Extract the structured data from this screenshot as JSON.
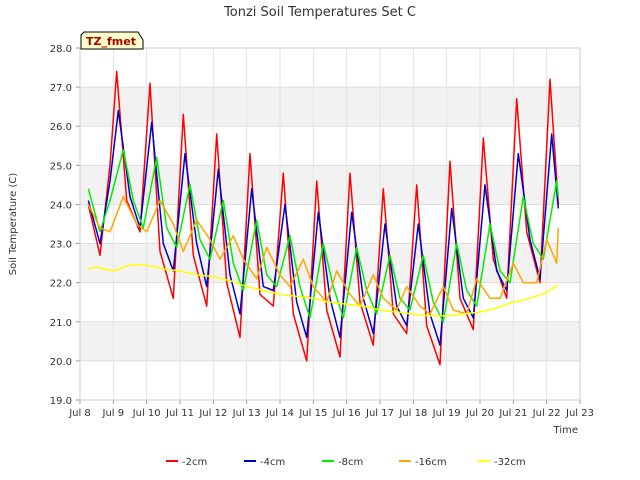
{
  "chart_data": {
    "type": "line",
    "title": "Tonzi Soil Temperatures Set C",
    "xlabel": "Time",
    "ylabel": "Soil Temperature (C)",
    "xlim": [
      8.0,
      23.0
    ],
    "ylim": [
      19.0,
      28.0
    ],
    "x_ticks": [
      8,
      9,
      10,
      11,
      12,
      13,
      14,
      15,
      16,
      17,
      18,
      19,
      20,
      21,
      22,
      23
    ],
    "x_tick_labels": [
      "Jul 8",
      "Jul 9",
      "Jul 10",
      "Jul 11",
      "Jul 12",
      "Jul 13",
      "Jul 14",
      "Jul 15",
      "Jul 16",
      "Jul 17",
      "Jul 18",
      "Jul 19",
      "Jul 20",
      "Jul 21",
      "Jul 22",
      "Jul 23"
    ],
    "y_ticks": [
      19.0,
      20.0,
      21.0,
      22.0,
      23.0,
      24.0,
      25.0,
      26.0,
      27.0,
      28.0
    ],
    "y_tick_labels": [
      "19.0",
      "20.0",
      "21.0",
      "22.0",
      "23.0",
      "24.0",
      "25.0",
      "26.0",
      "27.0",
      "28.0"
    ],
    "grid": true,
    "legend_position": "bottom",
    "annotation": {
      "text": "TZ_fmet",
      "text_color": "#aa0000",
      "background": "#ffffcc"
    },
    "series": [
      {
        "name": "-2cm",
        "color": "#ff0000",
        "x": [
          8.25,
          8.6,
          8.9,
          9.1,
          9.4,
          9.8,
          10.1,
          10.4,
          10.8,
          11.1,
          11.4,
          11.8,
          12.1,
          12.4,
          12.8,
          13.1,
          13.4,
          13.8,
          14.1,
          14.4,
          14.8,
          15.1,
          15.4,
          15.8,
          16.1,
          16.4,
          16.8,
          17.1,
          17.4,
          17.8,
          18.1,
          18.4,
          18.8,
          19.1,
          19.4,
          19.8,
          20.1,
          20.4,
          20.8,
          21.1,
          21.4,
          21.8,
          22.1,
          22.35
        ],
        "y": [
          24.0,
          22.7,
          25.0,
          27.4,
          24.1,
          23.3,
          27.1,
          22.8,
          21.6,
          26.3,
          22.7,
          21.4,
          25.8,
          22.0,
          20.6,
          25.3,
          21.7,
          21.4,
          24.8,
          21.2,
          20.0,
          24.6,
          21.3,
          20.1,
          24.8,
          21.5,
          20.4,
          24.4,
          21.2,
          20.7,
          24.5,
          20.9,
          19.9,
          25.1,
          21.6,
          20.8,
          25.7,
          22.6,
          21.6,
          26.7,
          23.3,
          22.0,
          27.2,
          24.0
        ]
      },
      {
        "name": "-4cm",
        "color": "#0000cc",
        "x": [
          8.25,
          8.6,
          8.9,
          9.15,
          9.5,
          9.8,
          10.15,
          10.5,
          10.8,
          11.15,
          11.5,
          11.8,
          12.15,
          12.5,
          12.8,
          13.15,
          13.5,
          13.8,
          14.15,
          14.5,
          14.8,
          15.15,
          15.5,
          15.8,
          16.15,
          16.5,
          16.8,
          17.15,
          17.5,
          17.8,
          18.15,
          18.5,
          18.8,
          19.15,
          19.5,
          19.8,
          20.15,
          20.5,
          20.8,
          21.15,
          21.5,
          21.8,
          22.15,
          22.35
        ],
        "y": [
          24.1,
          23.0,
          24.6,
          26.4,
          24.2,
          23.4,
          26.1,
          23.0,
          22.3,
          25.3,
          23.0,
          21.9,
          24.9,
          22.2,
          21.2,
          24.4,
          21.9,
          21.8,
          24.0,
          21.5,
          20.6,
          23.8,
          21.6,
          20.6,
          23.8,
          21.6,
          20.7,
          23.5,
          21.4,
          20.9,
          23.5,
          21.2,
          20.4,
          23.9,
          21.6,
          21.1,
          24.5,
          22.3,
          21.8,
          25.3,
          23.1,
          22.1,
          25.8,
          23.9
        ]
      },
      {
        "name": "-8cm",
        "color": "#00ee00",
        "x": [
          8.25,
          8.6,
          8.9,
          9.3,
          9.6,
          9.9,
          10.3,
          10.6,
          10.9,
          11.3,
          11.6,
          11.9,
          12.3,
          12.6,
          12.9,
          13.3,
          13.6,
          13.9,
          14.3,
          14.6,
          14.9,
          15.3,
          15.6,
          15.9,
          16.3,
          16.6,
          16.9,
          17.3,
          17.6,
          17.9,
          18.3,
          18.6,
          18.9,
          19.3,
          19.6,
          19.9,
          20.3,
          20.6,
          20.9,
          21.3,
          21.6,
          21.9,
          22.3,
          22.35
        ],
        "y": [
          24.4,
          23.3,
          24.1,
          25.4,
          24.1,
          23.4,
          25.2,
          23.4,
          22.9,
          24.5,
          23.1,
          22.6,
          24.1,
          22.5,
          21.8,
          23.6,
          22.2,
          21.9,
          23.2,
          21.9,
          21.1,
          23.0,
          21.9,
          21.1,
          22.9,
          21.8,
          21.2,
          22.7,
          21.6,
          21.3,
          22.7,
          21.5,
          21.0,
          23.0,
          21.8,
          21.4,
          23.5,
          22.3,
          22.0,
          24.2,
          23.0,
          22.6,
          24.6,
          24.2
        ]
      },
      {
        "name": "-16cm",
        "color": "#ffa500",
        "x": [
          8.25,
          8.6,
          8.9,
          9.3,
          9.7,
          10.0,
          10.4,
          10.8,
          11.1,
          11.5,
          11.9,
          12.2,
          12.6,
          12.9,
          13.3,
          13.6,
          14.0,
          14.3,
          14.7,
          15.0,
          15.4,
          15.7,
          16.1,
          16.4,
          16.8,
          17.1,
          17.5,
          17.8,
          18.2,
          18.5,
          18.9,
          19.2,
          19.6,
          19.9,
          20.3,
          20.6,
          21.0,
          21.3,
          21.7,
          22.0,
          22.3,
          22.35
        ],
        "y": [
          24.0,
          23.4,
          23.3,
          24.2,
          23.5,
          23.3,
          24.1,
          23.5,
          22.8,
          23.6,
          23.1,
          22.6,
          23.2,
          22.6,
          22.1,
          22.9,
          22.2,
          21.9,
          22.6,
          21.9,
          21.5,
          22.3,
          21.7,
          21.4,
          22.2,
          21.6,
          21.3,
          21.9,
          21.4,
          21.2,
          21.9,
          21.3,
          21.2,
          22.1,
          21.6,
          21.6,
          22.5,
          22.0,
          22.0,
          23.1,
          22.5,
          23.4
        ]
      },
      {
        "name": "-32cm",
        "color": "#ffff00",
        "x": [
          8.25,
          8.5,
          9.0,
          9.5,
          10.0,
          10.5,
          11.0,
          11.5,
          12.0,
          12.5,
          13.0,
          13.5,
          14.0,
          14.5,
          15.0,
          15.5,
          16.0,
          16.5,
          17.0,
          17.5,
          18.0,
          18.5,
          19.0,
          19.5,
          20.0,
          20.5,
          21.0,
          21.5,
          22.0,
          22.35
        ],
        "y": [
          22.35,
          22.4,
          22.3,
          22.45,
          22.45,
          22.35,
          22.3,
          22.2,
          22.15,
          22.05,
          21.9,
          21.8,
          21.7,
          21.65,
          21.6,
          21.5,
          21.45,
          21.4,
          21.3,
          21.25,
          21.2,
          21.15,
          21.15,
          21.2,
          21.25,
          21.35,
          21.5,
          21.6,
          21.75,
          21.95
        ]
      }
    ]
  }
}
